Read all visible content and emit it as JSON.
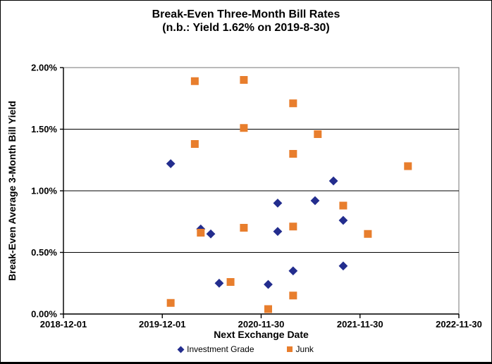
{
  "window": {
    "background": "#ffffff",
    "border_color": "#000000"
  },
  "colors": {
    "investment_grade": "#232d8e",
    "junk": "#e87e2d",
    "gridline": "#000000",
    "plot_border": "#8c8c8c",
    "axis": "#000000",
    "text": "#000000"
  },
  "chart_data": {
    "type": "scatter",
    "title": "Break-Even Three-Month Bill Rates",
    "subtitle": "(n.b.: Yield 1.62% on 2019-8-30)",
    "xlabel": "Next Exchange Date",
    "ylabel": "Break-Even Average 3-Month Bill Yield",
    "x_range": [
      "2018-12-01",
      "2022-11-30"
    ],
    "x_ticks": [
      "2018-12-01",
      "2019-12-01",
      "2020-11-30",
      "2021-11-30",
      "2022-11-30"
    ],
    "y_range": [
      0,
      2
    ],
    "y_ticks": [
      {
        "value": 0.0,
        "label": "0.00%"
      },
      {
        "value": 0.5,
        "label": "0.50%"
      },
      {
        "value": 1.0,
        "label": "1.00%"
      },
      {
        "value": 1.5,
        "label": "1.50%"
      },
      {
        "value": 2.0,
        "label": "2.00%"
      }
    ],
    "grid": {
      "horizontal": true,
      "vertical": false
    },
    "legend_position": "bottom-center",
    "series": [
      {
        "name": "Investment Grade",
        "marker": "diamond",
        "color": "#232d8e",
        "points": [
          {
            "x": "2020-01-01",
            "y": 1.22
          },
          {
            "x": "2020-04-21",
            "y": 0.69
          },
          {
            "x": "2020-05-28",
            "y": 0.65
          },
          {
            "x": "2020-06-28",
            "y": 0.25
          },
          {
            "x": "2020-12-26",
            "y": 0.24
          },
          {
            "x": "2021-01-30",
            "y": 0.9
          },
          {
            "x": "2021-01-30",
            "y": 0.67
          },
          {
            "x": "2021-03-28",
            "y": 0.35
          },
          {
            "x": "2021-06-17",
            "y": 0.92
          },
          {
            "x": "2021-08-24",
            "y": 1.08
          },
          {
            "x": "2021-09-29",
            "y": 0.39
          },
          {
            "x": "2021-09-29",
            "y": 0.76
          }
        ]
      },
      {
        "name": "Junk",
        "marker": "square",
        "color": "#e87e2d",
        "points": [
          {
            "x": "2020-01-01",
            "y": 0.09
          },
          {
            "x": "2020-03-30",
            "y": 1.89
          },
          {
            "x": "2020-03-30",
            "y": 1.38
          },
          {
            "x": "2020-04-21",
            "y": 0.66
          },
          {
            "x": "2020-08-09",
            "y": 0.26
          },
          {
            "x": "2020-09-27",
            "y": 1.9
          },
          {
            "x": "2020-09-27",
            "y": 1.51
          },
          {
            "x": "2020-09-27",
            "y": 0.7
          },
          {
            "x": "2020-12-26",
            "y": 0.04
          },
          {
            "x": "2021-03-28",
            "y": 1.71
          },
          {
            "x": "2021-03-28",
            "y": 1.3
          },
          {
            "x": "2021-03-28",
            "y": 0.71
          },
          {
            "x": "2021-03-28",
            "y": 0.15
          },
          {
            "x": "2021-06-27",
            "y": 1.46
          },
          {
            "x": "2021-09-29",
            "y": 0.88
          },
          {
            "x": "2021-12-29",
            "y": 0.65
          },
          {
            "x": "2022-05-26",
            "y": 1.2
          }
        ]
      }
    ]
  }
}
